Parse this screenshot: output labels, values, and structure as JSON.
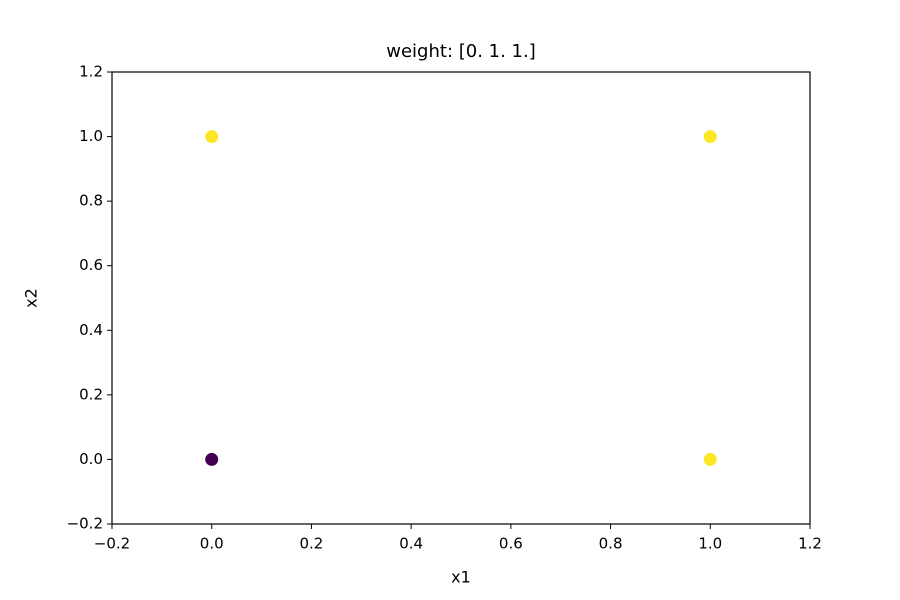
{
  "chart_data": {
    "type": "scatter",
    "title": "weight: [0. 1. 1.]",
    "xlabel": "x1",
    "ylabel": "x2",
    "series": [
      {
        "x": [
          0,
          0,
          1,
          1
        ],
        "values": [
          0,
          1,
          0,
          1
        ],
        "colors": [
          "#440154",
          "#fde725",
          "#fde725",
          "#fde725"
        ]
      }
    ],
    "xlim": [
      -0.2,
      1.2
    ],
    "ylim": [
      -0.2,
      1.2
    ],
    "xticks": [
      {
        "value": -0.2,
        "label": "−0.2"
      },
      {
        "value": 0,
        "label": "0.0"
      },
      0.2,
      0.4,
      0.6,
      0.8,
      {
        "value": 1,
        "label": "1.0"
      },
      1.2
    ],
    "yticks": [
      {
        "value": -0.2,
        "label": "−0.2"
      },
      {
        "value": 0,
        "label": "0.0"
      },
      0.2,
      0.4,
      0.6,
      0.8,
      {
        "value": 1,
        "label": "1.0"
      },
      1.2
    ],
    "grid": false
  }
}
